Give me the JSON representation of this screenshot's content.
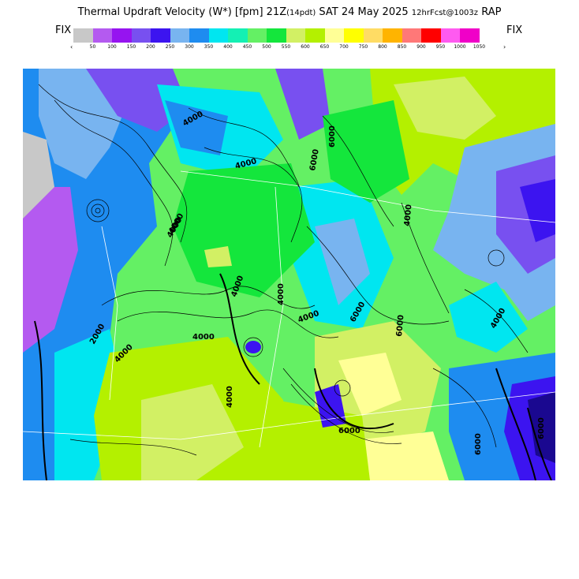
{
  "header": {
    "title_main": "Thermal Updraft Velocity (W*) [fpm] 21Z",
    "title_pdt": "(14pdt)",
    "title_date": "SAT 24 May 2025",
    "title_fcst": "12hrFcst@1003z",
    "title_model": "RAP",
    "fix_left": "FIX",
    "fix_right": "FIX",
    "arrow_left": "‹",
    "arrow_right": "›"
  },
  "legend": {
    "colors": [
      "#c8c8c8",
      "#b45af0",
      "#9614f0",
      "#7850f0",
      "#3c14f0",
      "#78b4f0",
      "#1e8cf0",
      "#00e6f0",
      "#14f0b4",
      "#64f064",
      "#14e63c",
      "#d2f064",
      "#b4f000",
      "#ffff96",
      "#ffff00",
      "#ffdc64",
      "#ffb400",
      "#ff7878",
      "#ff0000",
      "#ff5af0",
      "#f000c8"
    ],
    "ticks": [
      "50",
      "100",
      "150",
      "200",
      "250",
      "300",
      "350",
      "400",
      "450",
      "500",
      "550",
      "600",
      "650",
      "700",
      "750",
      "800",
      "850",
      "900",
      "950",
      "1000",
      "1050"
    ]
  },
  "map": {
    "contour_labels": [
      "4000",
      "4000",
      "4000",
      "4000",
      "4000",
      "4000",
      "6000",
      "4000",
      "6000",
      "6000",
      "4000",
      "6000",
      "4000",
      "2000",
      "4000",
      "4000",
      "4000",
      "6000",
      "6000",
      "6000"
    ]
  }
}
